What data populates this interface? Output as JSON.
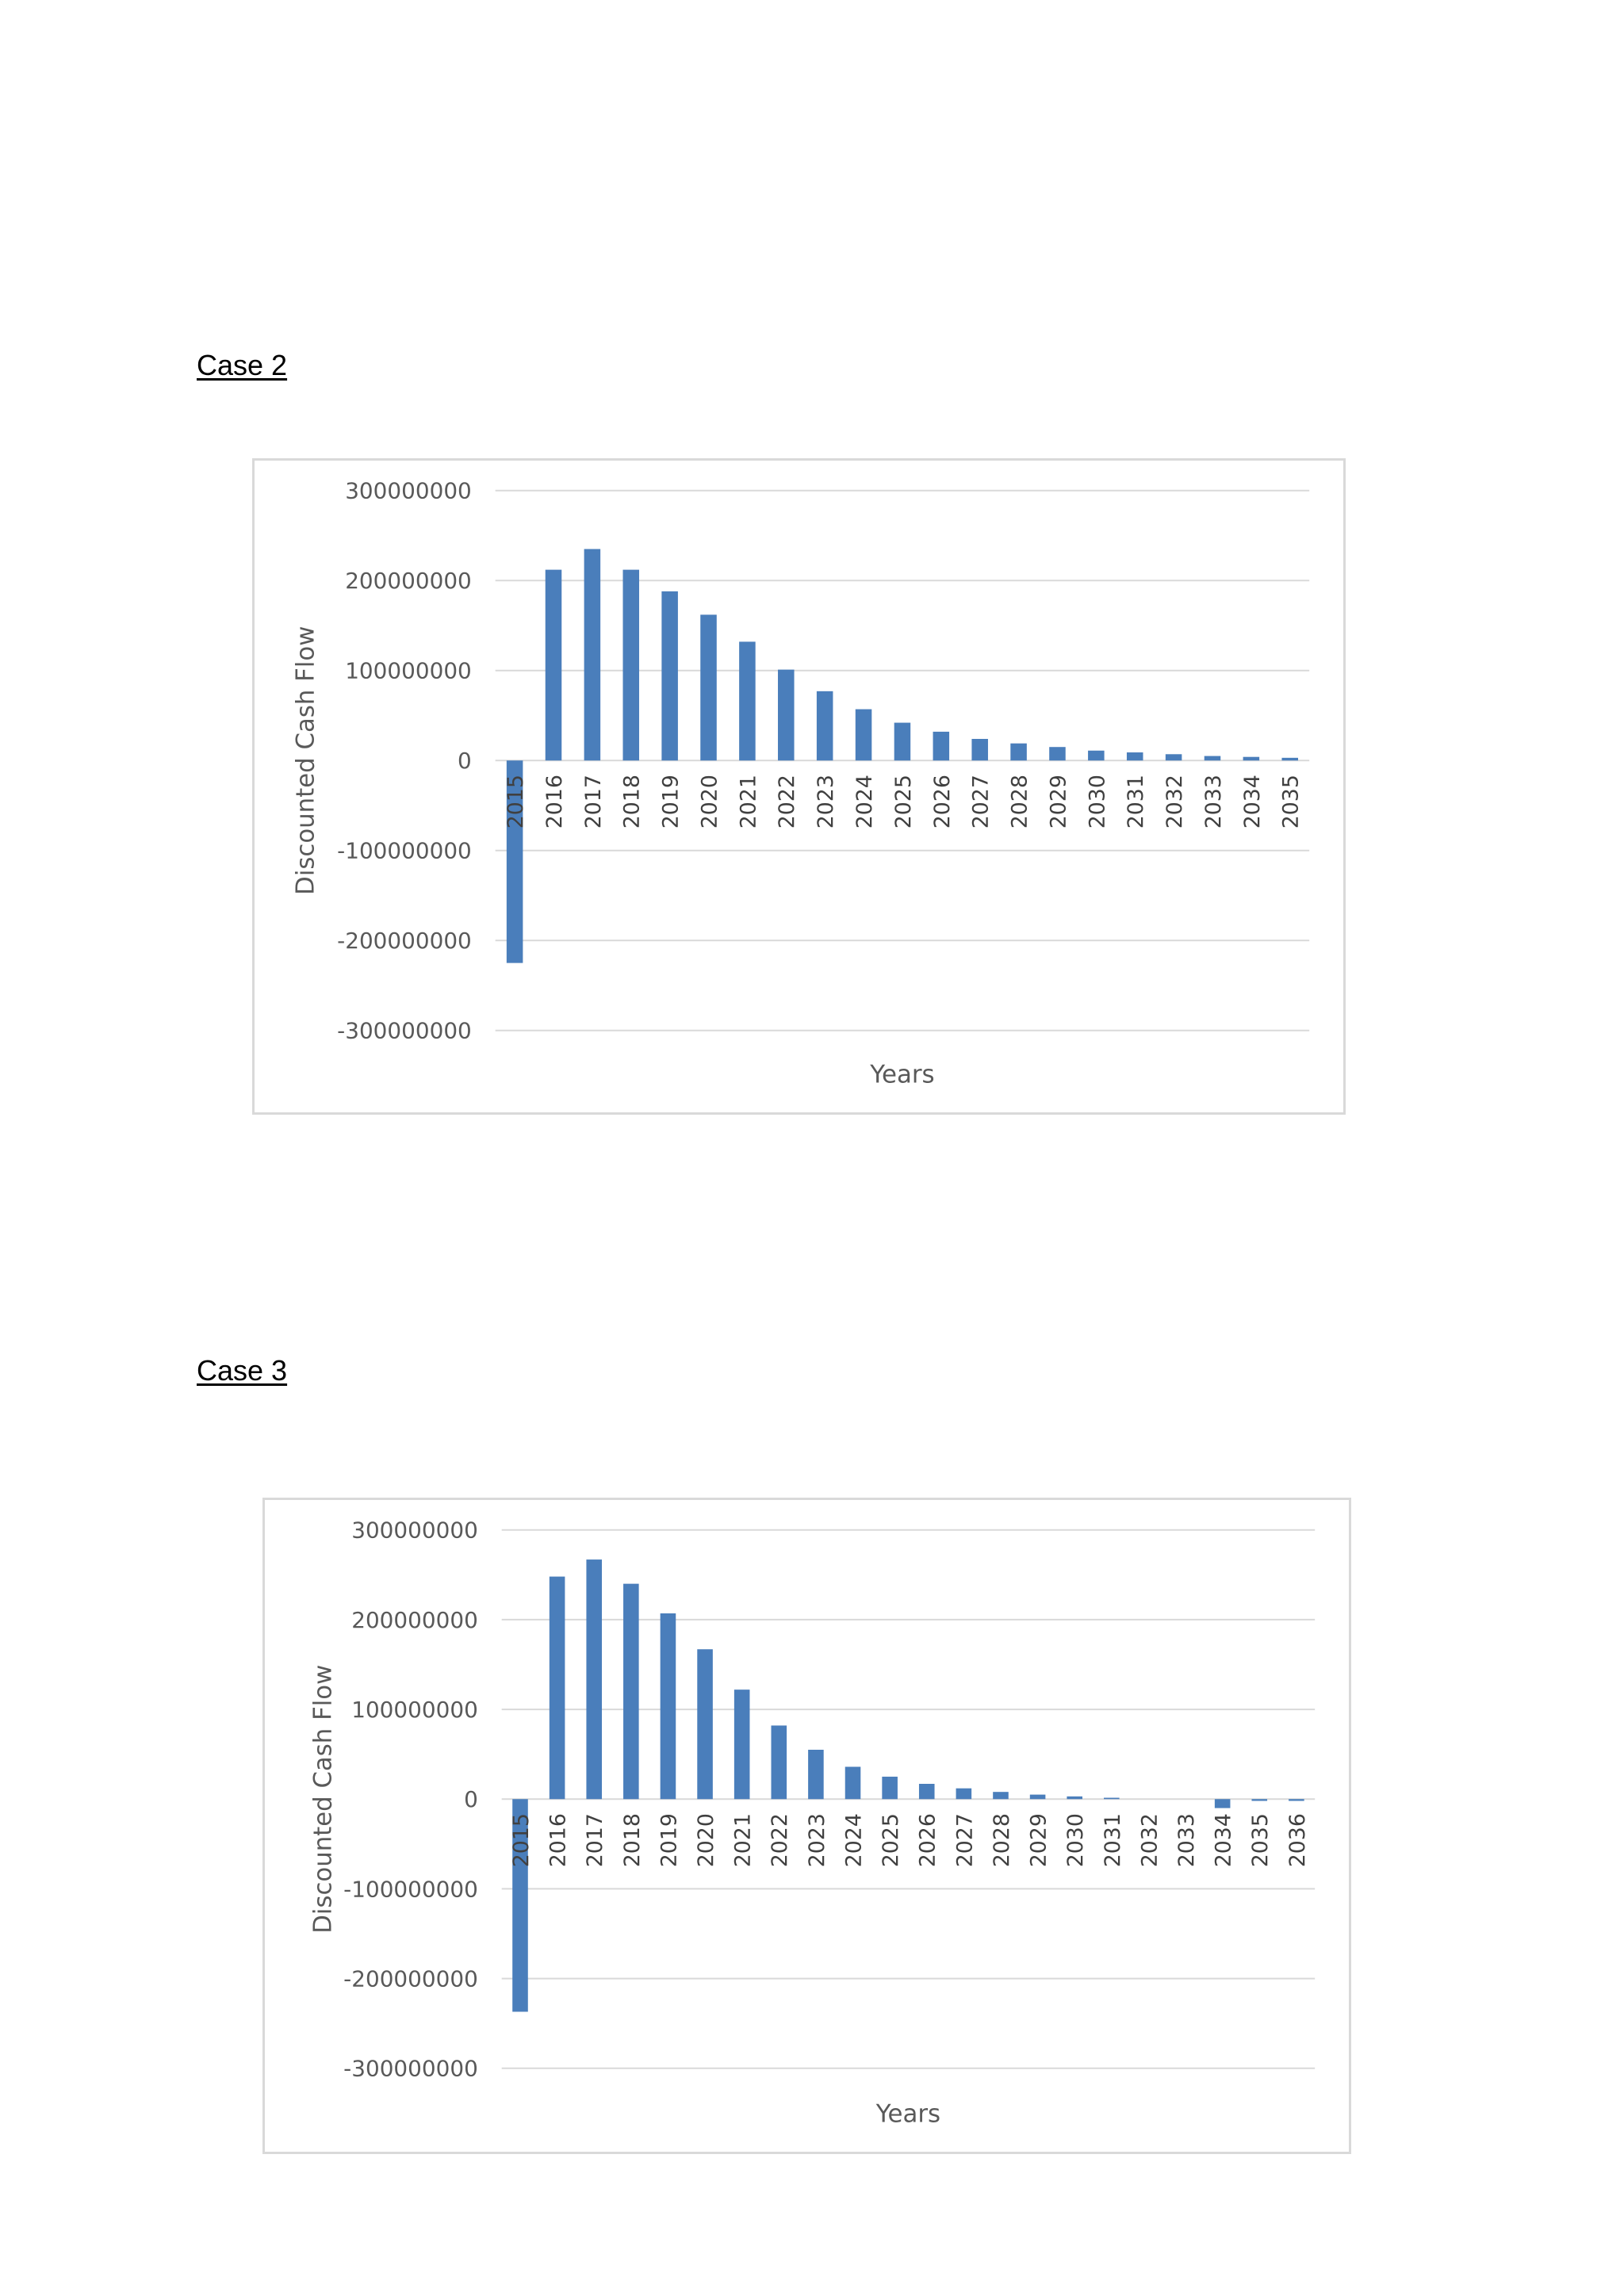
{
  "headings": [
    "Case 2",
    "Case 3"
  ],
  "colors": {
    "bar": "#4a7ebb",
    "gridline": "#d9d9d9",
    "frame": "#d9d9d9",
    "axis_text": "#595959"
  },
  "chart_data": [
    {
      "type": "bar",
      "title": "",
      "xlabel": "Years",
      "ylabel": "Discounted Cash Flow",
      "ylim": [
        -300000000,
        300000000
      ],
      "yticks": [
        300000000,
        200000000,
        100000000,
        0,
        -100000000,
        -200000000,
        -300000000
      ],
      "ytick_labels": [
        "300000000",
        "200000000",
        "100000000",
        "0",
        "-100000000",
        "-200000000",
        "-300000000"
      ],
      "grid": true,
      "legend": "none",
      "categories": [
        "2015",
        "2016",
        "2017",
        "2018",
        "2019",
        "2020",
        "2021",
        "2022",
        "2023",
        "2024",
        "2025",
        "2026",
        "2027",
        "2028",
        "2029",
        "2030",
        "2031",
        "2032",
        "2033",
        "2034",
        "2035"
      ],
      "values": [
        -225000000,
        212000000,
        235000000,
        212000000,
        188000000,
        162000000,
        132000000,
        101000000,
        77000000,
        57000000,
        42000000,
        32000000,
        24000000,
        19000000,
        15000000,
        11000000,
        9000000,
        7000000,
        5000000,
        4000000,
        3000000
      ]
    },
    {
      "type": "bar",
      "title": "",
      "xlabel": "Years",
      "ylabel": "Discounted Cash Flow",
      "ylim": [
        -300000000,
        300000000
      ],
      "yticks": [
        300000000,
        200000000,
        100000000,
        0,
        -100000000,
        -200000000,
        -300000000
      ],
      "ytick_labels": [
        "300000000",
        "200000000",
        "100000000",
        "0",
        "-100000000",
        "-200000000",
        "-300000000"
      ],
      "grid": true,
      "legend": "none",
      "categories": [
        "2015",
        "2016",
        "2017",
        "2018",
        "2019",
        "2020",
        "2021",
        "2022",
        "2023",
        "2024",
        "2025",
        "2026",
        "2027",
        "2028",
        "2029",
        "2030",
        "2031",
        "2032",
        "2033",
        "2034",
        "2035",
        "2036"
      ],
      "values": [
        -237000000,
        248000000,
        267000000,
        240000000,
        207000000,
        167000000,
        122000000,
        82000000,
        55000000,
        36000000,
        25000000,
        17000000,
        12000000,
        8000000,
        5000000,
        3000000,
        1500000,
        0,
        0,
        -10000000,
        -2000000,
        -2000000
      ]
    }
  ]
}
